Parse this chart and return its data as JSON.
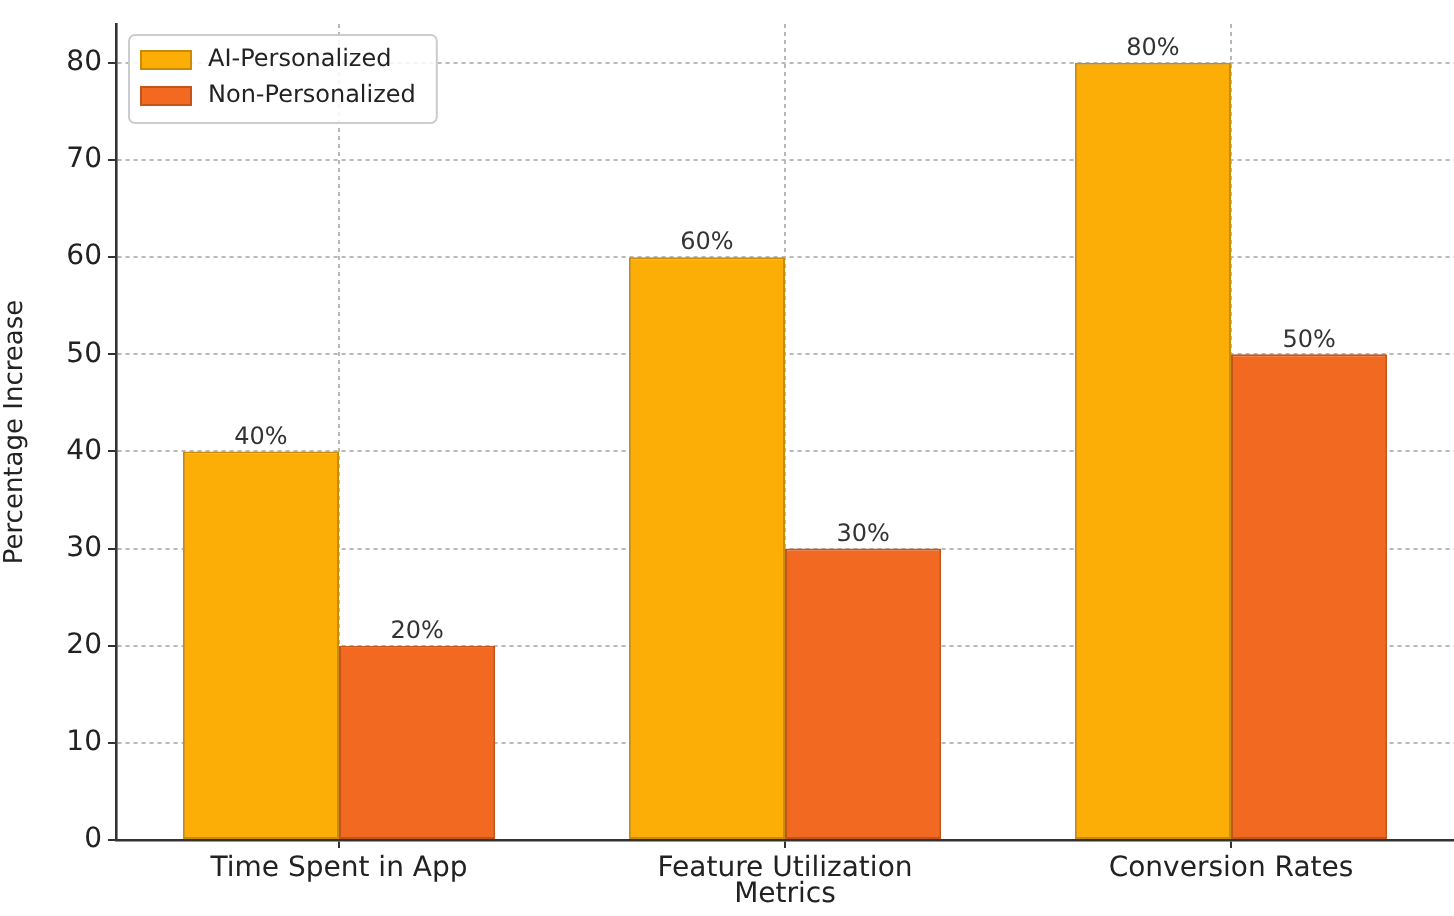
{
  "chart_data": {
    "type": "bar",
    "xlabel": "Metrics",
    "ylabel": "Percentage Increase",
    "categories": [
      "Time Spent in App",
      "Feature Utilization",
      "Conversion Rates"
    ],
    "series": [
      {
        "name": "AI-Personalized",
        "color": "#fdae06",
        "values": [
          40,
          60,
          80
        ],
        "value_labels": [
          "40%",
          "60%",
          "80%"
        ]
      },
      {
        "name": "Non-Personalized",
        "color": "#f26a21",
        "values": [
          20,
          30,
          50
        ],
        "value_labels": [
          "20%",
          "30%",
          "50%"
        ]
      }
    ],
    "ylim": [
      0,
      84
    ],
    "yticks": [
      0,
      10,
      20,
      30,
      40,
      50,
      60,
      70,
      80
    ],
    "grid": true,
    "legend": "top left"
  }
}
